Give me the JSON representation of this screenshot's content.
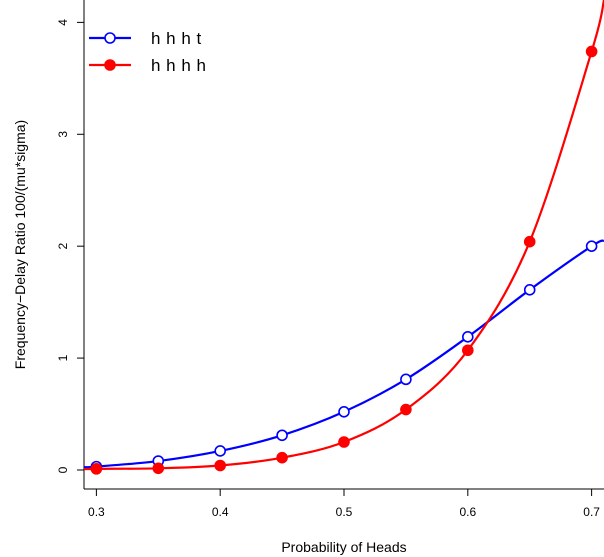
{
  "chart_data": {
    "type": "line",
    "title": "",
    "xlabel": "Probability of Heads",
    "ylabel": "Frequency−Delay Ratio 100/(mu*sigma)",
    "xlim": [
      0.29,
      0.71
    ],
    "ylim": [
      -0.17,
      4.2
    ],
    "x_ticks": [
      0.3,
      0.4,
      0.5,
      0.6,
      0.7
    ],
    "x_tick_labels": [
      "0.3",
      "0.4",
      "0.5",
      "0.6",
      "0.7"
    ],
    "y_ticks": [
      0,
      1,
      2,
      3,
      4
    ],
    "y_tick_labels": [
      "0",
      "1",
      "2",
      "3",
      "4"
    ],
    "grid": false,
    "legend_position": "top-left",
    "x": [
      0.3,
      0.35,
      0.4,
      0.45,
      0.5,
      0.55,
      0.6,
      0.65,
      0.7
    ],
    "series": [
      {
        "name": "h h h t",
        "color": "#0000ff",
        "marker": "open-circle",
        "values": [
          0.03,
          0.08,
          0.17,
          0.31,
          0.52,
          0.81,
          1.19,
          1.61,
          2.0
        ],
        "curve_x": [
          0.29,
          0.3,
          0.35,
          0.4,
          0.45,
          0.5,
          0.55,
          0.6,
          0.65,
          0.7,
          0.71
        ],
        "curve_y": [
          0.025,
          0.03,
          0.08,
          0.17,
          0.31,
          0.52,
          0.81,
          1.19,
          1.61,
          2.0,
          2.05
        ]
      },
      {
        "name": "h h h h",
        "color": "#ff0000",
        "marker": "filled-circle",
        "values": [
          0.01,
          0.015,
          0.04,
          0.11,
          0.25,
          0.54,
          1.07,
          2.04,
          3.74
        ],
        "curve_x": [
          0.29,
          0.3,
          0.35,
          0.4,
          0.45,
          0.5,
          0.55,
          0.6,
          0.65,
          0.7,
          0.71
        ],
        "curve_y": [
          0.008,
          0.01,
          0.015,
          0.04,
          0.11,
          0.25,
          0.54,
          1.07,
          2.04,
          3.74,
          4.2
        ]
      }
    ]
  }
}
